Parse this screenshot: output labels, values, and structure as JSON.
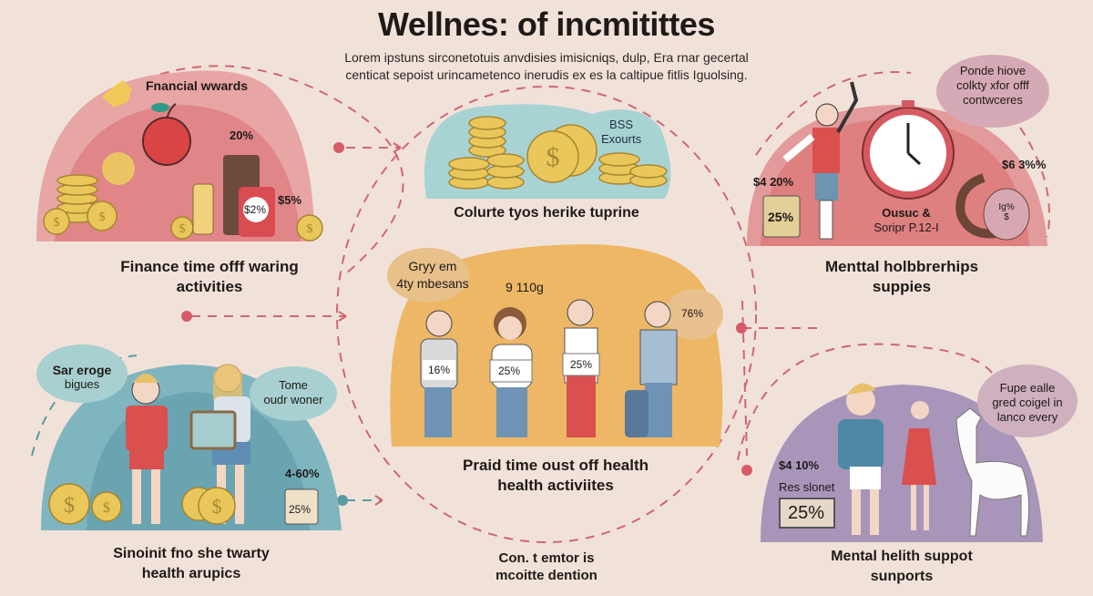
{
  "header": {
    "title": "Wellnes: of incmitittes",
    "subtitle_line1": "Lorem ipstuns sirconetotuis anvdisies  imisicniqs, dulp, Era rnar gecertal",
    "subtitle_line2": "centicat sepoist urincametenco inerudis ex es  la caltipue fitlis Iguolsing."
  },
  "panels": {
    "financial": {
      "heading": "Fnancial wwards",
      "stat_1": "20%",
      "stat_2": "$5%",
      "badge": "$2%",
      "caption_line1": "Finance time offf waring",
      "caption_line2": "activities",
      "color": "#e48a8c"
    },
    "coins": {
      "tag_line1": "BSS",
      "tag_line2": "Exourts",
      "caption": "Colurte tyos herike tuprine",
      "color": "#a9d3d3"
    },
    "mental_top": {
      "bubble_line1": "Ponde hiove",
      "bubble_line2": "colkty xfor offf",
      "bubble_line3": "contwceres",
      "stat_left": "$4 20%",
      "box_value": "25%",
      "clock_label_line1": "Ousuc &",
      "clock_label_line2": "Soripr P.12-I",
      "stat_right": "$6 3%%",
      "bag_label_line1": "Ig%",
      "bag_label_line2": "$",
      "caption_line1": "Menttal holbbrerhips",
      "caption_line2": "suppies",
      "color": "#de7f80"
    },
    "center": {
      "bubble_line1": "Gryy em",
      "bubble_line2": "4ty mbesans",
      "stat_top": "9 110g",
      "stat_right": "76%",
      "person_labels": [
        "16%",
        "25%",
        "25%"
      ],
      "caption_line1": "Praid time oust off health",
      "caption_line2": "health activiites",
      "color": "#edb766"
    },
    "bottom_left": {
      "bubble_left_line1": "Sar eroge",
      "bubble_left_line2": "bigues",
      "bubble_right_line1": "Tome",
      "bubble_right_line2": "oudr woner",
      "stat": "4-60%",
      "calendar_value": "25%",
      "caption_line1": "Sinoinit fno she twarty",
      "caption_line2": "health arupics",
      "color": "#6fa9b4"
    },
    "bottom_right": {
      "bubble_line1": "Fupe ealle",
      "bubble_line2": "gred coigel in",
      "bubble_line3": "lanco every",
      "stat": "$4 10%",
      "monitor_label": "Res slonet",
      "monitor_value": "25%",
      "caption_line1": "Mental helith suppot",
      "caption_line2": "sunports",
      "color": "#a48fb6"
    },
    "bottom_center": {
      "caption_line1": "Con. t emtor is",
      "caption_line2": "mcoitte dention"
    }
  },
  "connector_color": "#cf5a6a"
}
